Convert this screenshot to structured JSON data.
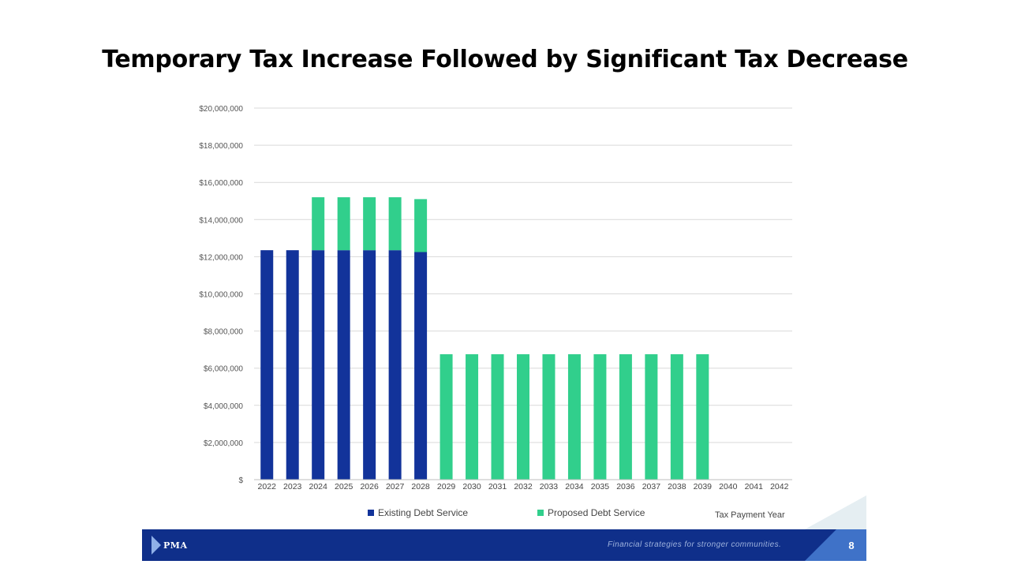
{
  "slide": {
    "title": "Temporary Tax Increase Followed by Significant Tax Decrease",
    "page_number": "8",
    "tagline": "Financial strategies for stronger communities.",
    "logo_text": "PMA"
  },
  "colors": {
    "existing": "#12339a",
    "proposed": "#31cf8c",
    "grid": "#d9d9d9",
    "footer": "#0f2f8a",
    "accent": "#3f72c8"
  },
  "chart_data": {
    "type": "bar",
    "stacked": true,
    "title": "",
    "xlabel": "Tax Payment Year",
    "ylabel": "",
    "ylim": [
      0,
      20000000
    ],
    "ytick_labels": [
      "$",
      "$2,000,000",
      "$4,000,000",
      "$6,000,000",
      "$8,000,000",
      "$10,000,000",
      "$12,000,000",
      "$14,000,000",
      "$16,000,000",
      "$18,000,000",
      "$20,000,000"
    ],
    "categories": [
      "2022",
      "2023",
      "2024",
      "2025",
      "2026",
      "2027",
      "2028",
      "2029",
      "2030",
      "2031",
      "2032",
      "2033",
      "2034",
      "2035",
      "2036",
      "2037",
      "2038",
      "2039",
      "2040",
      "2041",
      "2042"
    ],
    "series": [
      {
        "name": "Existing Debt Service",
        "values": [
          12350000,
          12350000,
          12350000,
          12350000,
          12350000,
          12350000,
          12250000,
          0,
          0,
          0,
          0,
          0,
          0,
          0,
          0,
          0,
          0,
          0,
          0,
          0,
          0
        ]
      },
      {
        "name": "Proposed Debt Service",
        "values": [
          0,
          0,
          2850000,
          2850000,
          2850000,
          2850000,
          2850000,
          6750000,
          6750000,
          6750000,
          6750000,
          6750000,
          6750000,
          6750000,
          6750000,
          6750000,
          6750000,
          6750000,
          0,
          0,
          0
        ]
      }
    ],
    "grid": true,
    "legend_position": "bottom"
  }
}
